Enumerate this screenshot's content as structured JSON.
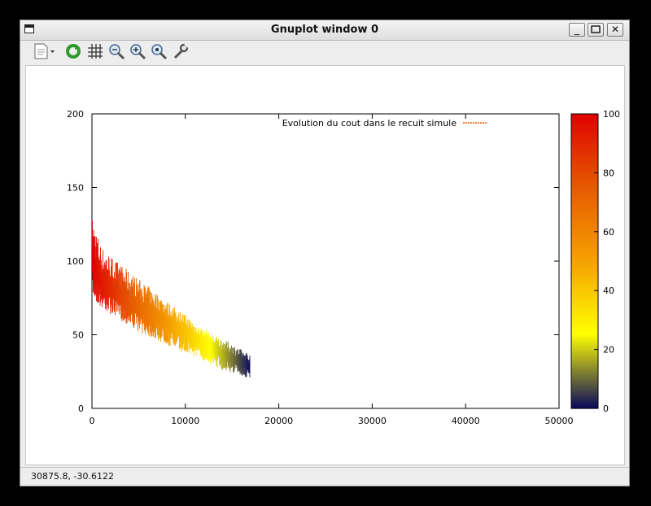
{
  "window": {
    "title": "Gnuplot window 0",
    "minimize": "_",
    "close": "✕"
  },
  "toolbar": {
    "buttons": [
      {
        "name": "copy-menu-icon"
      },
      {
        "name": "replot-icon"
      },
      {
        "name": "grid-icon"
      },
      {
        "name": "zoom-previous-icon"
      },
      {
        "name": "zoom-next-icon"
      },
      {
        "name": "autoscale-icon"
      },
      {
        "name": "settings-icon"
      }
    ]
  },
  "status": {
    "coords": "30875.8, -30.6122"
  },
  "chart_data": {
    "type": "line",
    "title": "",
    "xlabel": "",
    "ylabel": "",
    "xlim": [
      0,
      50000
    ],
    "ylim": [
      0,
      200
    ],
    "xticks": [
      0,
      10000,
      20000,
      30000,
      40000,
      50000
    ],
    "yticks": [
      0,
      50,
      100,
      150,
      200
    ],
    "legend": {
      "label": "Evolution du cout dans le recuit simule",
      "position": "top-right"
    },
    "colorbar": {
      "range": [
        0,
        100
      ],
      "ticks": [
        0,
        20,
        40,
        60,
        80,
        100
      ],
      "palette": [
        "#0b0b5c",
        "#ffff00",
        "#f5a000",
        "#e65a00",
        "#e00000"
      ]
    },
    "series": [
      {
        "x": [
          0,
          1000,
          2000,
          3000,
          4000,
          5000,
          6000,
          7000,
          8000,
          9000,
          10000,
          11000,
          12000,
          13000,
          14000,
          15000,
          16000,
          16900
        ],
        "y_mean": [
          100,
          85,
          80,
          76,
          72,
          68,
          65,
          62,
          58,
          55,
          52,
          48,
          44,
          40,
          37,
          34,
          31,
          28
        ],
        "y_min": [
          75,
          68,
          64,
          60,
          56,
          52,
          49,
          46,
          43,
          40,
          37,
          35,
          32,
          29,
          26,
          24,
          22,
          20
        ],
        "y_max": [
          130,
          110,
          104,
          98,
          93,
          88,
          83,
          78,
          73,
          68,
          64,
          58,
          54,
          50,
          47,
          44,
          40,
          37
        ]
      }
    ]
  }
}
